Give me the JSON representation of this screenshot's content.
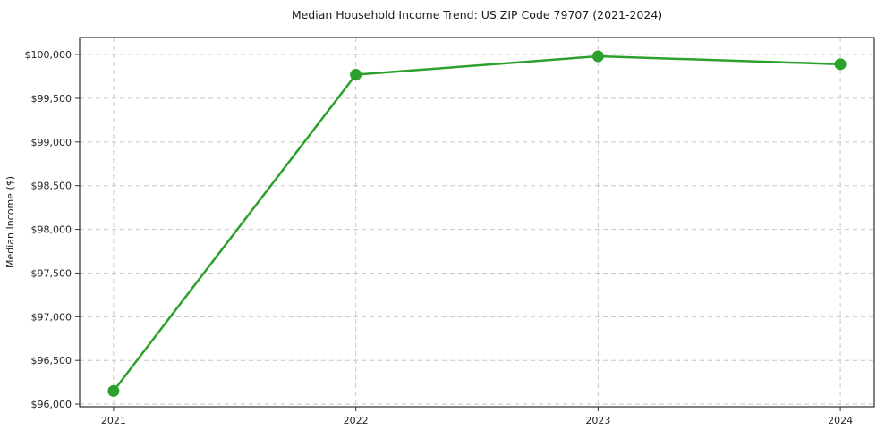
{
  "chart_data": {
    "type": "line",
    "title": "Median Household Income Trend: US ZIP Code 79707 (2021-2024)",
    "xlabel": "",
    "ylabel": "Median Income ($)",
    "x": [
      2021,
      2022,
      2023,
      2024
    ],
    "x_tick_labels": [
      "2021",
      "2022",
      "2023",
      "2024"
    ],
    "y_ticks": [
      {
        "value": 96000,
        "label": "$96,000"
      },
      {
        "value": 96500,
        "label": "$96,500"
      },
      {
        "value": 97000,
        "label": "$97,000"
      },
      {
        "value": 97500,
        "label": "$97,500"
      },
      {
        "value": 98000,
        "label": "$98,000"
      },
      {
        "value": 98500,
        "label": "$98,500"
      },
      {
        "value": 99000,
        "label": "$99,000"
      },
      {
        "value": 99500,
        "label": "$99,500"
      },
      {
        "value": 100000,
        "label": "$100,000"
      }
    ],
    "series": [
      {
        "name": "Median Household Income",
        "values": [
          96150,
          99770,
          99980,
          99890
        ],
        "color": "#2ca02c",
        "marker": "circle",
        "line_width": 2.5,
        "marker_radius": 6.5
      }
    ],
    "xlim": [
      2020.86,
      2024.14
    ],
    "ylim": [
      95970,
      100195
    ],
    "grid": {
      "visible": true,
      "linestyle": "dashed",
      "color": "#c8c8c8",
      "dash": "5 4"
    },
    "legend": "none",
    "background": "#ffffff",
    "tick_color": "#333333"
  }
}
